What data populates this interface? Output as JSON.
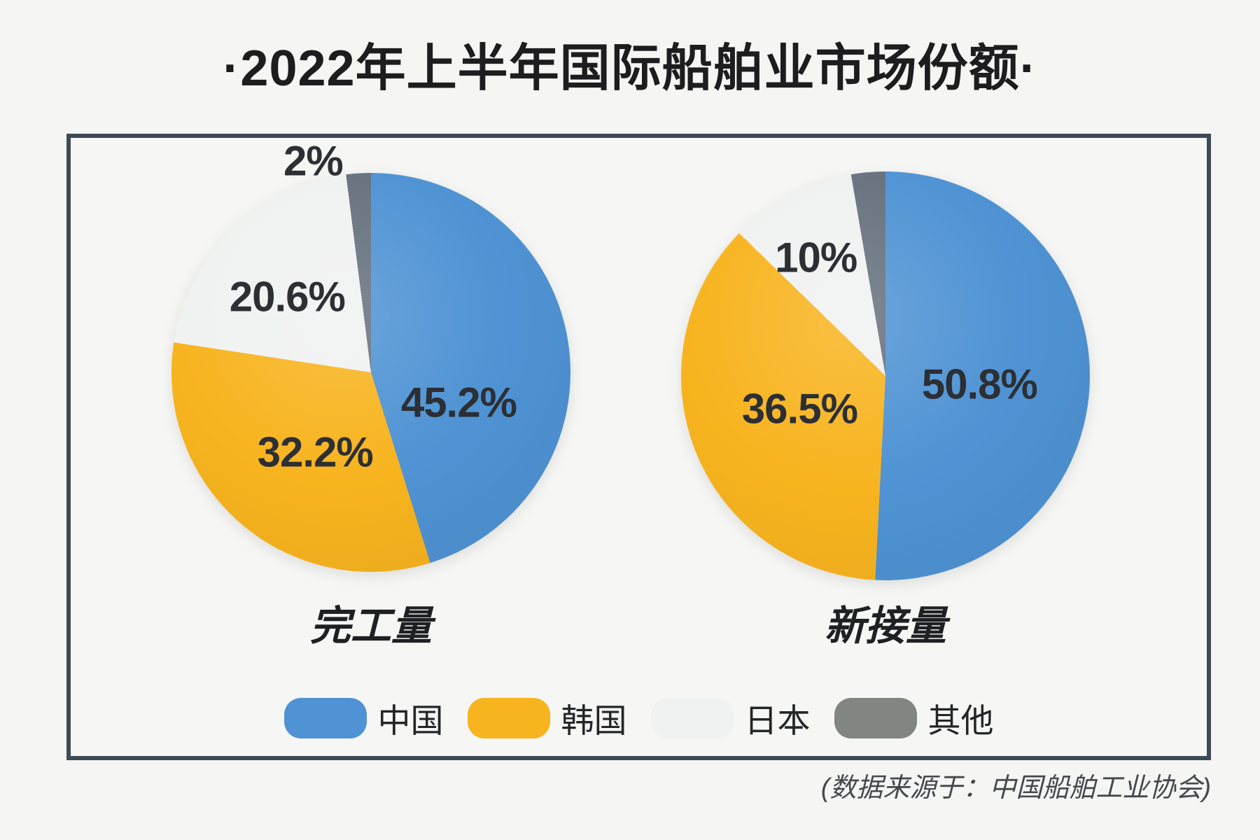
{
  "title": "·2022年上半年国际船舶业市场份额·",
  "source_note": "(数据来源于：中国船舶工业协会)",
  "colors": {
    "china": "#4f93d4",
    "korea": "#f8b41f",
    "japan": "#f0f1f1",
    "other": "#66717e",
    "legend_other": "#828680",
    "panel_border": "#3e4a54",
    "background": "#f5f5f3",
    "title_text": "#1d1d1f",
    "label_text": "#2c2f34"
  },
  "legend": {
    "items": [
      {
        "key": "china",
        "label": "中国",
        "color": "#4f93d4"
      },
      {
        "key": "korea",
        "label": "韩国",
        "color": "#f8b41f"
      },
      {
        "key": "japan",
        "label": "日本",
        "color": "#f0f1f1"
      },
      {
        "key": "other",
        "label": "其他",
        "color": "#828680"
      }
    ]
  },
  "chart_data": [
    {
      "type": "pie",
      "title": "完工量",
      "unit": "%",
      "start_angle_deg": 0,
      "direction": "clockwise",
      "slices": [
        {
          "label": "中国",
          "value": 45.2,
          "display": "45.2%",
          "color_key": "china",
          "label_pos": {
            "x": 72,
            "y": 57.5
          }
        },
        {
          "label": "韩国",
          "value": 32.2,
          "display": "32.2%",
          "color_key": "korea",
          "label_pos": {
            "x": 36,
            "y": 70
          }
        },
        {
          "label": "日本",
          "value": 20.6,
          "display": "20.6%",
          "color_key": "japan",
          "label_pos": {
            "x": 29,
            "y": 31
          }
        },
        {
          "label": "其他",
          "value": 2.0,
          "display": "2%",
          "color_key": "other",
          "label_pos": {
            "x": 35.5,
            "y": -3
          }
        }
      ]
    },
    {
      "type": "pie",
      "title": "新接量",
      "unit": "%",
      "start_angle_deg": 0,
      "direction": "clockwise",
      "slices": [
        {
          "label": "中国",
          "value": 50.8,
          "display": "50.8%",
          "color_key": "china",
          "label_pos": {
            "x": 73,
            "y": 52
          }
        },
        {
          "label": "韩国",
          "value": 36.5,
          "display": "36.5%",
          "color_key": "korea",
          "label_pos": {
            "x": 29,
            "y": 58
          }
        },
        {
          "label": "日本",
          "value": 10.0,
          "display": "10%",
          "color_key": "japan",
          "label_pos": {
            "x": 33,
            "y": 21
          }
        },
        {
          "label": "其他",
          "value": 2.7,
          "display": "",
          "color_key": "other",
          "label_pos": {
            "x": 50,
            "y": -3
          }
        }
      ]
    }
  ]
}
